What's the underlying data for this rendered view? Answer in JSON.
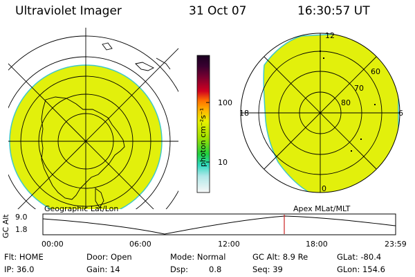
{
  "header": {
    "title": "Ultraviolet Imager",
    "date": "31 Oct 07",
    "time": "16:30:57 UT"
  },
  "colorbar": {
    "unit_label": "photon cm⁻²s⁻¹",
    "ticks": [
      "100",
      "10"
    ]
  },
  "polar_plot": {
    "labels": {
      "top": "12",
      "bottom": "0",
      "left": "18",
      "right": "6",
      "lat60": "60",
      "lat70": "70",
      "lat80": "80"
    }
  },
  "timeline": {
    "left_title": "Geographic Lat/Lon",
    "right_title": "Apex  MLat/MLT",
    "axis_label": "GC Alt",
    "y_max": "9.0",
    "y_min": "1.8",
    "x_ticks": [
      "00:00",
      "06:00",
      "12:00",
      "18:00",
      "23:59"
    ]
  },
  "status": {
    "flt": "Flt: HOME",
    "ip": "IP: 36.0",
    "door": "Door: Open",
    "gain": "Gain: 14",
    "mode": "Mode: Normal",
    "dsp_label": "Dsp:",
    "dsp_value": "0.8",
    "gc_alt": "GC Alt: 8.9 Re",
    "seq": "Seq: 39",
    "glat": "GLat: -80.4",
    "glon": "GLon: 154.6"
  },
  "colors": {
    "fill": "#e2f00c",
    "rim": "#3fc8c8",
    "marker": "#cc2222"
  }
}
